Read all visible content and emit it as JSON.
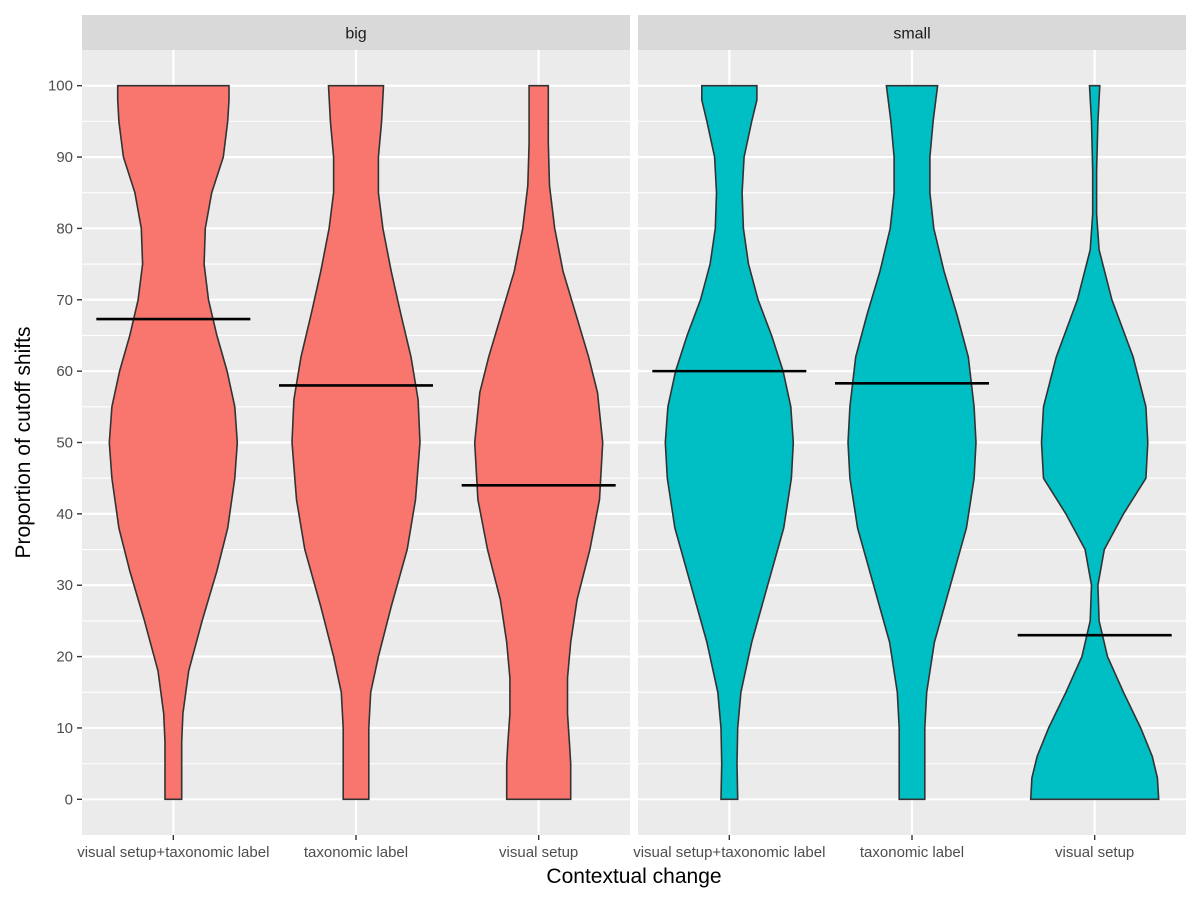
{
  "chart_data": {
    "type": "violin",
    "xlabel": "Contextual change",
    "ylabel": "Proportion of cutoff shifts",
    "ylim": [
      -5,
      105
    ],
    "yticks": [
      0,
      10,
      20,
      30,
      40,
      50,
      60,
      70,
      80,
      90,
      100
    ],
    "categories": [
      "visual setup+taxonomic label",
      "taxonomic label",
      "visual setup"
    ],
    "grid": true,
    "panels": [
      {
        "facet": "big",
        "color": "#F8766D",
        "violins": [
          {
            "category": "visual setup+taxonomic label",
            "mean": 67.3,
            "profile": [
              [
                0,
                0.13
              ],
              [
                3,
                0.13
              ],
              [
                8,
                0.13
              ],
              [
                12,
                0.15
              ],
              [
                18,
                0.24
              ],
              [
                25,
                0.45
              ],
              [
                32,
                0.68
              ],
              [
                38,
                0.85
              ],
              [
                45,
                0.96
              ],
              [
                50,
                1.0
              ],
              [
                55,
                0.96
              ],
              [
                60,
                0.84
              ],
              [
                65,
                0.68
              ],
              [
                70,
                0.55
              ],
              [
                75,
                0.48
              ],
              [
                80,
                0.5
              ],
              [
                85,
                0.6
              ],
              [
                90,
                0.78
              ],
              [
                95,
                0.85
              ],
              [
                98,
                0.87
              ],
              [
                100,
                0.87
              ]
            ]
          },
          {
            "category": "taxonomic label",
            "mean": 58.0,
            "profile": [
              [
                0,
                0.2
              ],
              [
                5,
                0.2
              ],
              [
                10,
                0.2
              ],
              [
                15,
                0.23
              ],
              [
                20,
                0.35
              ],
              [
                27,
                0.55
              ],
              [
                35,
                0.8
              ],
              [
                42,
                0.93
              ],
              [
                50,
                1.0
              ],
              [
                56,
                0.97
              ],
              [
                62,
                0.86
              ],
              [
                68,
                0.7
              ],
              [
                74,
                0.55
              ],
              [
                80,
                0.42
              ],
              [
                85,
                0.35
              ],
              [
                90,
                0.35
              ],
              [
                95,
                0.4
              ],
              [
                100,
                0.43
              ]
            ]
          },
          {
            "category": "visual setup",
            "mean": 44.0,
            "profile": [
              [
                0,
                0.5
              ],
              [
                2,
                0.5
              ],
              [
                5,
                0.5
              ],
              [
                8,
                0.48
              ],
              [
                12,
                0.45
              ],
              [
                17,
                0.45
              ],
              [
                22,
                0.5
              ],
              [
                28,
                0.6
              ],
              [
                35,
                0.8
              ],
              [
                42,
                0.95
              ],
              [
                50,
                1.0
              ],
              [
                57,
                0.92
              ],
              [
                62,
                0.78
              ],
              [
                68,
                0.58
              ],
              [
                74,
                0.38
              ],
              [
                80,
                0.25
              ],
              [
                86,
                0.17
              ],
              [
                92,
                0.15
              ],
              [
                100,
                0.15
              ]
            ]
          }
        ]
      },
      {
        "facet": "small",
        "color": "#00BFC4",
        "violins": [
          {
            "category": "visual setup+taxonomic label",
            "mean": 60.0,
            "profile": [
              [
                0,
                0.13
              ],
              [
                5,
                0.12
              ],
              [
                10,
                0.13
              ],
              [
                15,
                0.18
              ],
              [
                22,
                0.35
              ],
              [
                30,
                0.6
              ],
              [
                38,
                0.85
              ],
              [
                45,
                0.97
              ],
              [
                50,
                1.0
              ],
              [
                55,
                0.96
              ],
              [
                60,
                0.84
              ],
              [
                65,
                0.66
              ],
              [
                70,
                0.45
              ],
              [
                75,
                0.3
              ],
              [
                80,
                0.22
              ],
              [
                85,
                0.2
              ],
              [
                90,
                0.23
              ],
              [
                95,
                0.35
              ],
              [
                98,
                0.43
              ],
              [
                100,
                0.43
              ]
            ]
          },
          {
            "category": "taxonomic label",
            "mean": 58.3,
            "profile": [
              [
                0,
                0.2
              ],
              [
                5,
                0.2
              ],
              [
                10,
                0.2
              ],
              [
                15,
                0.23
              ],
              [
                22,
                0.35
              ],
              [
                30,
                0.6
              ],
              [
                38,
                0.85
              ],
              [
                45,
                0.97
              ],
              [
                50,
                1.0
              ],
              [
                55,
                0.97
              ],
              [
                62,
                0.88
              ],
              [
                68,
                0.7
              ],
              [
                74,
                0.5
              ],
              [
                80,
                0.34
              ],
              [
                85,
                0.28
              ],
              [
                90,
                0.28
              ],
              [
                95,
                0.33
              ],
              [
                100,
                0.4
              ]
            ]
          },
          {
            "category": "visual setup",
            "mean": 23.0,
            "profile": [
              [
                0,
                1.0
              ],
              [
                3,
                0.98
              ],
              [
                6,
                0.9
              ],
              [
                10,
                0.72
              ],
              [
                15,
                0.45
              ],
              [
                20,
                0.2
              ],
              [
                25,
                0.07
              ],
              [
                30,
                0.05
              ],
              [
                35,
                0.15
              ],
              [
                40,
                0.45
              ],
              [
                45,
                0.8
              ],
              [
                50,
                0.83
              ],
              [
                55,
                0.8
              ],
              [
                62,
                0.6
              ],
              [
                70,
                0.27
              ],
              [
                77,
                0.07
              ],
              [
                82,
                0.03
              ],
              [
                88,
                0.03
              ],
              [
                95,
                0.05
              ],
              [
                100,
                0.08
              ]
            ]
          }
        ]
      }
    ]
  }
}
